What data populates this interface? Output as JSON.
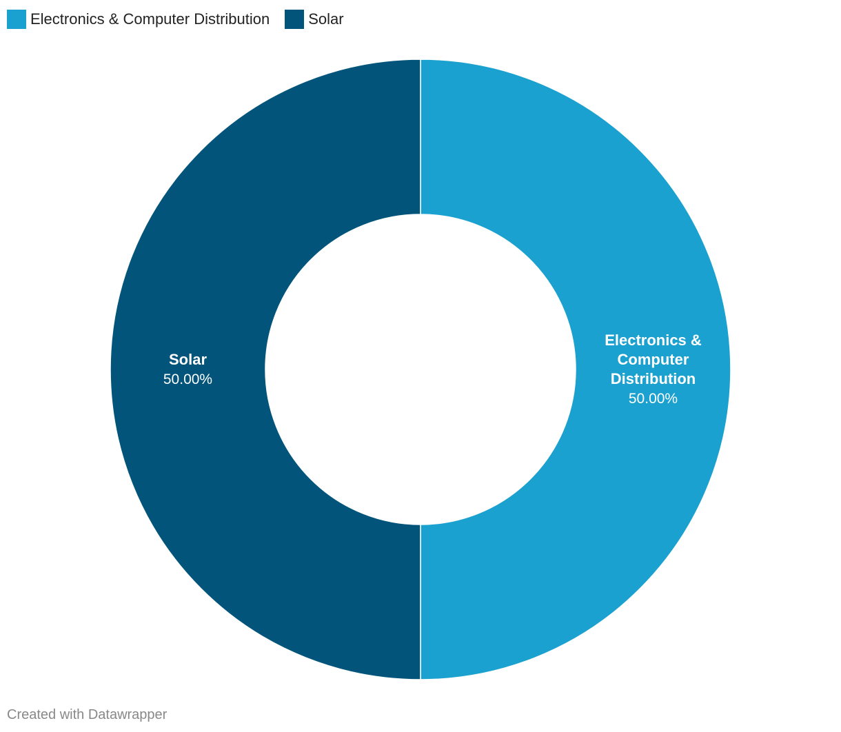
{
  "chart_data": {
    "type": "pie",
    "style": "donut",
    "title": "",
    "slices": [
      {
        "name": "Electronics & Computer Distribution",
        "label_lines": [
          "Electronics &",
          "Computer",
          "Distribution"
        ],
        "value": 50.0,
        "value_label": "50.00%",
        "color": "#1ba1cf"
      },
      {
        "name": "Solar",
        "label_lines": [
          "Solar"
        ],
        "value": 50.0,
        "value_label": "50.00%",
        "color": "#02547b"
      }
    ],
    "legend_position": "top-left"
  },
  "legend": {
    "items": [
      {
        "label": "Electronics & Computer Distribution",
        "color": "#1ba1cf"
      },
      {
        "label": "Solar",
        "color": "#02547b"
      }
    ]
  },
  "footer": {
    "credit": "Created with Datawrapper"
  }
}
